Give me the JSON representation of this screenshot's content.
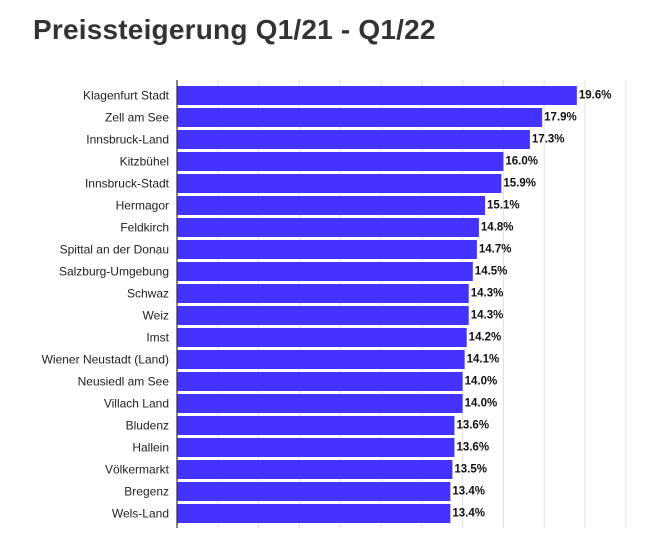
{
  "chart_data": {
    "type": "bar",
    "orientation": "horizontal",
    "title": "Preissteigerung Q1/21 - Q1/22",
    "categories": [
      "Klagenfurt Stadt",
      "Zell am See",
      "Innsbruck-Land",
      "Kitzbühel",
      "Innsbruck-Stadt",
      "Hermagor",
      "Feldkirch",
      "Spittal an der Donau",
      "Salzburg-Umgebung",
      "Schwaz",
      "Weiz",
      "Imst",
      "Wiener Neustadt (Land)",
      "Neusiedl am See",
      "Villach Land",
      "Bludenz",
      "Hallein",
      "Völkermarkt",
      "Bregenz",
      "Wels-Land"
    ],
    "values": [
      19.6,
      17.9,
      17.3,
      16.0,
      15.9,
      15.1,
      14.8,
      14.7,
      14.5,
      14.3,
      14.3,
      14.2,
      14.1,
      14.0,
      14.0,
      13.6,
      13.6,
      13.5,
      13.4,
      13.4
    ],
    "value_labels": [
      "19.6%",
      "17.9%",
      "17.3%",
      "16.0%",
      "15.9%",
      "15.1%",
      "14.8%",
      "14.7%",
      "14.5%",
      "14.3%",
      "14.3%",
      "14.2%",
      "14.1%",
      "14.0%",
      "14.0%",
      "13.6%",
      "13.6%",
      "13.5%",
      "13.4%",
      "13.4%"
    ],
    "xlim": [
      0,
      22
    ],
    "xticks_hidden": true,
    "grid": true,
    "legend": "none",
    "bar_color": "#4433ff"
  }
}
